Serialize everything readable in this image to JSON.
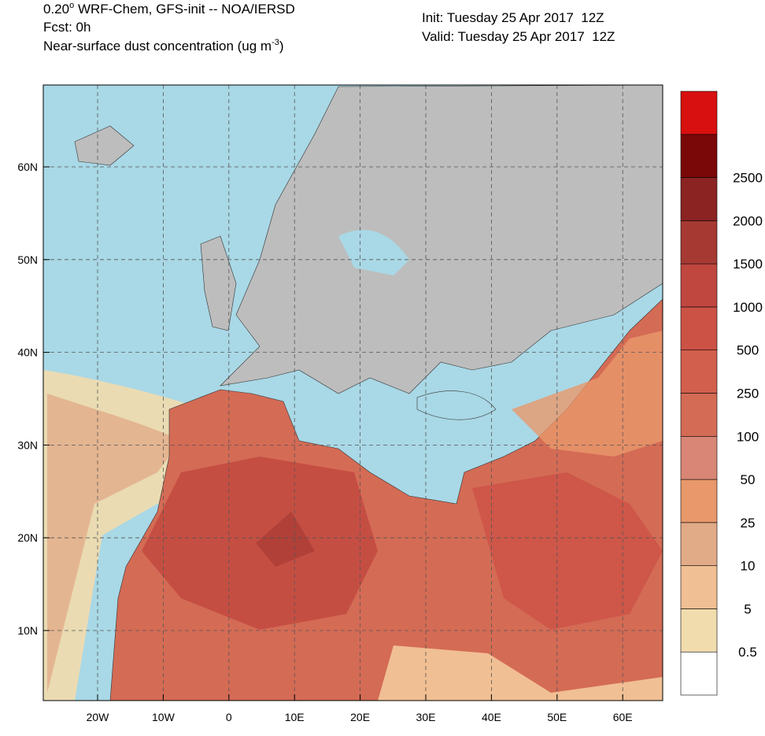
{
  "header": {
    "title_left": [
      "0.20",
      "o",
      " WRF-Chem, GFS-init -- NOA/IERSD"
    ],
    "forecast": "Fcst: 0h",
    "variable": [
      "Near-surface dust concentration (ug m",
      "-3",
      ")"
    ],
    "init": "Init: Tuesday 25 Apr 2017  12Z",
    "valid": "Valid: Tuesday 25 Apr 2017  12Z"
  },
  "map": {
    "lat_labels": [
      "10N",
      "20N",
      "30N",
      "40N",
      "50N",
      "60N"
    ],
    "lon_labels": [
      "20W",
      "10W",
      "0",
      "10E",
      "20E",
      "30E",
      "40E",
      "50E",
      "60E"
    ]
  },
  "colorbar": {
    "levels": [
      0.5,
      5,
      10,
      25,
      50,
      100,
      250,
      500,
      1000,
      1500,
      2000,
      2500
    ],
    "colors": [
      "#ffffff",
      "#f1dcad",
      "#f0bf93",
      "#e2ab88",
      "#e8986b",
      "#d98676",
      "#d46b55",
      "#d25f4d",
      "#cc5246",
      "#c0473f",
      "#a63a33",
      "#8b2323",
      "#7a0808",
      "#d8100f"
    ]
  }
}
